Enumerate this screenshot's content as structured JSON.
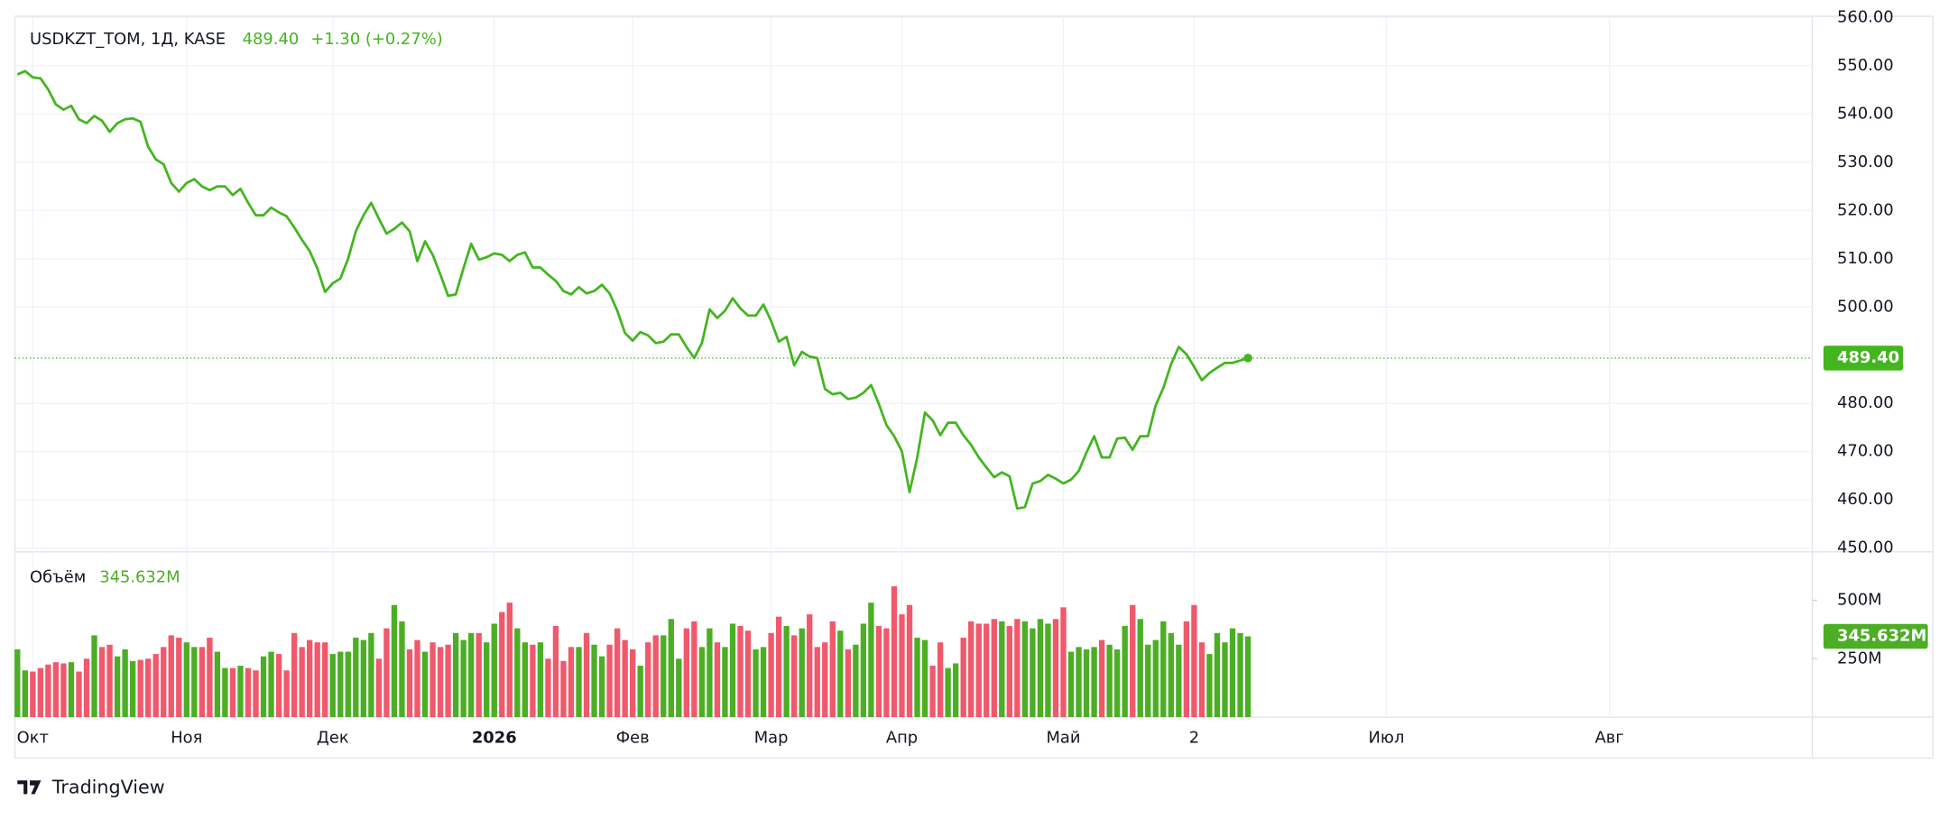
{
  "header": {
    "symbol": "USDKZT_TOM, 1Д, KASE",
    "change": "+1.30 (+0.27%)",
    "brand": "TradingView"
  },
  "chart_data": [
    {
      "type": "line",
      "color": "#43b51f",
      "grid": true,
      "categories": [
        null,
        null,
        "Окт",
        null,
        null,
        null,
        null,
        null,
        null,
        null,
        null,
        null,
        null,
        null,
        null,
        null,
        null,
        null,
        null,
        null,
        null,
        null,
        "Ноя",
        null,
        null,
        null,
        null,
        null,
        null,
        null,
        null,
        null,
        null,
        null,
        null,
        null,
        null,
        null,
        null,
        null,
        null,
        "Дек",
        null,
        null,
        null,
        null,
        null,
        null,
        null,
        null,
        null,
        null,
        null,
        null,
        null,
        null,
        null,
        null,
        null,
        null,
        null,
        null,
        "2026",
        null,
        null,
        null,
        null,
        null,
        null,
        null,
        null,
        null,
        null,
        null,
        null,
        null,
        null,
        null,
        null,
        null,
        "Фев",
        null,
        null,
        null,
        null,
        null,
        null,
        null,
        null,
        null,
        null,
        null,
        null,
        null,
        null,
        null,
        null,
        null,
        "Мар",
        null,
        null,
        null,
        null,
        null,
        null,
        null,
        null,
        null,
        null,
        null,
        null,
        null,
        null,
        null,
        null,
        "Апр",
        null,
        null,
        null,
        null,
        null,
        null,
        null,
        null,
        null,
        null,
        null,
        null,
        null,
        null,
        null,
        null,
        null,
        null,
        null,
        null,
        "Май",
        null,
        null,
        null,
        null,
        null,
        null,
        null,
        null,
        null,
        null,
        null,
        null,
        null,
        null,
        null,
        null,
        "2",
        null,
        null,
        null,
        null,
        null,
        null,
        null,
        null,
        null,
        null,
        null,
        null,
        null,
        null,
        null,
        null,
        null,
        null,
        null,
        null,
        null,
        null,
        null,
        null,
        "Июл",
        null,
        null,
        null,
        null,
        null,
        null,
        null,
        null,
        null,
        null,
        null,
        null,
        null,
        null,
        null,
        null,
        null,
        null,
        null,
        null,
        null,
        null,
        null,
        null,
        null,
        null,
        null,
        null,
        "Авг",
        null,
        null,
        null,
        null,
        null,
        null,
        null,
        null,
        null,
        null,
        null,
        null,
        null,
        null,
        null,
        null,
        null,
        null,
        null,
        null,
        null,
        null,
        null,
        null,
        null,
        null
      ],
      "values": [
        548.2,
        548.9,
        547.6,
        547.4,
        545.1,
        542.0,
        540.9,
        541.7,
        538.9,
        538.1,
        539.6,
        538.6,
        536.3,
        538.1,
        538.9,
        539.1,
        538.4,
        533.2,
        530.6,
        529.6,
        525.7,
        523.9,
        525.7,
        526.5,
        525.0,
        524.2,
        525.0,
        525.0,
        523.2,
        524.5,
        521.6,
        519.0,
        519.0,
        520.6,
        519.6,
        518.8,
        516.5,
        513.9,
        511.6,
        508.0,
        503.1,
        504.9,
        505.9,
        510.0,
        515.7,
        519.0,
        521.6,
        518.3,
        515.2,
        516.2,
        517.5,
        515.7,
        509.5,
        513.6,
        510.8,
        506.7,
        502.3,
        502.6,
        508.0,
        513.1,
        509.8,
        510.3,
        511.1,
        510.8,
        509.5,
        510.8,
        511.3,
        508.2,
        508.2,
        506.7,
        505.4,
        503.3,
        502.6,
        504.1,
        502.8,
        503.3,
        504.6,
        502.8,
        499.2,
        494.6,
        493.0,
        494.8,
        494.1,
        492.5,
        492.8,
        494.3,
        494.3,
        491.7,
        489.4,
        492.5,
        499.5,
        497.7,
        499.2,
        501.8,
        499.7,
        498.2,
        498.2,
        500.5,
        497.1,
        492.8,
        493.8,
        487.9,
        490.7,
        489.7,
        489.4,
        483.0,
        481.9,
        482.2,
        480.9,
        481.2,
        482.2,
        483.8,
        479.9,
        475.5,
        473.2,
        470.1,
        461.6,
        468.8,
        478.1,
        476.5,
        473.4,
        476.0,
        476.0,
        473.4,
        471.4,
        468.8,
        466.7,
        464.7,
        465.7,
        464.9,
        458.2,
        458.5,
        463.4,
        463.9,
        465.2,
        464.4,
        463.4,
        464.2,
        466.0,
        469.8,
        473.2,
        468.8,
        468.8,
        472.7,
        472.9,
        470.4,
        473.2,
        473.2,
        479.6,
        483.2,
        488.1,
        491.7,
        490.2,
        487.6,
        484.8,
        486.3,
        487.4,
        488.4,
        488.4,
        488.9,
        489.4,
        null,
        null,
        null,
        null,
        null,
        null,
        null,
        null,
        null,
        null,
        null,
        null,
        null,
        null,
        null,
        null,
        null,
        null,
        null,
        null,
        null,
        null,
        null,
        null,
        null,
        null,
        null,
        null,
        null,
        null,
        null,
        null,
        null,
        null,
        null,
        null,
        null,
        null,
        null,
        null,
        null,
        null,
        null,
        null,
        null,
        null,
        null,
        null,
        null,
        null,
        null,
        null,
        null,
        null,
        null,
        null,
        null,
        null,
        null,
        null,
        null,
        null,
        null,
        null,
        null,
        null,
        null,
        null,
        null,
        null,
        null,
        null,
        null
      ],
      "ylim": [
        450,
        560
      ],
      "yticks": [
        {
          "value": 450,
          "label": "450.00"
        },
        {
          "value": 460,
          "label": "460.00"
        },
        {
          "value": 470,
          "label": "470.00"
        },
        {
          "value": 480,
          "label": "480.00"
        },
        {
          "value": 490,
          "label": "490.00"
        },
        {
          "value": 500,
          "label": "500.00"
        },
        {
          "value": 510,
          "label": "510.00"
        },
        {
          "value": 520,
          "label": "520.00"
        },
        {
          "value": 530,
          "label": "530.00"
        },
        {
          "value": 540,
          "label": "540.00"
        },
        {
          "value": 550,
          "label": "550.00"
        },
        {
          "value": 560,
          "label": "560.00"
        }
      ],
      "last_value": {
        "value": 489.4,
        "label": "489.40"
      }
    },
    {
      "type": "bar",
      "title": "Объём",
      "up_color": "#4cae24",
      "down_color": "#f0596c",
      "values": [
        290,
        200,
        195,
        210,
        225,
        235,
        230,
        235,
        195,
        250,
        350,
        300,
        310,
        260,
        290,
        240,
        245,
        250,
        270,
        300,
        350,
        340,
        320,
        300,
        300,
        340,
        280,
        210,
        210,
        220,
        210,
        200,
        260,
        280,
        270,
        200,
        360,
        300,
        330,
        320,
        320,
        270,
        280,
        280,
        340,
        330,
        360,
        250,
        380,
        480,
        410,
        290,
        330,
        280,
        320,
        300,
        310,
        360,
        330,
        360,
        360,
        320,
        400,
        450,
        490,
        380,
        320,
        310,
        320,
        250,
        390,
        240,
        300,
        300,
        360,
        310,
        260,
        310,
        380,
        330,
        290,
        220,
        320,
        350,
        350,
        420,
        250,
        380,
        410,
        300,
        380,
        320,
        300,
        400,
        390,
        370,
        290,
        300,
        360,
        430,
        390,
        350,
        380,
        440,
        300,
        320,
        410,
        370,
        290,
        310,
        400,
        490,
        390,
        380,
        560,
        440,
        480,
        340,
        330,
        220,
        320,
        210,
        230,
        340,
        410,
        400,
        400,
        420,
        410,
        390,
        420,
        410,
        380,
        420,
        400,
        420,
        470,
        280,
        300,
        290,
        300,
        330,
        310,
        290,
        390,
        480,
        420,
        310,
        330,
        410,
        360,
        310,
        410,
        480,
        320,
        270,
        360,
        320,
        380,
        360,
        345.632,
        null,
        null,
        null,
        null,
        null,
        null,
        null,
        null,
        null,
        null,
        null,
        null,
        null,
        null,
        null,
        null,
        null,
        null,
        null,
        null,
        null,
        null,
        null,
        null,
        null,
        null,
        null,
        null,
        null,
        null,
        null,
        null,
        null,
        null,
        null,
        null,
        null,
        null,
        null,
        null,
        null,
        null,
        null,
        null,
        null,
        null,
        null,
        null,
        null,
        null,
        null,
        null,
        null,
        null,
        null,
        null,
        null,
        null,
        null,
        null,
        null,
        null,
        null,
        null,
        null,
        null,
        null,
        null,
        null,
        null,
        null,
        null
      ],
      "ylim": [
        0,
        697
      ],
      "yticks": [
        {
          "value": 250,
          "label": "250M"
        },
        {
          "value": 500,
          "label": "500M"
        }
      ],
      "last_value": {
        "value": 345.632,
        "label": "345.632M"
      }
    }
  ]
}
